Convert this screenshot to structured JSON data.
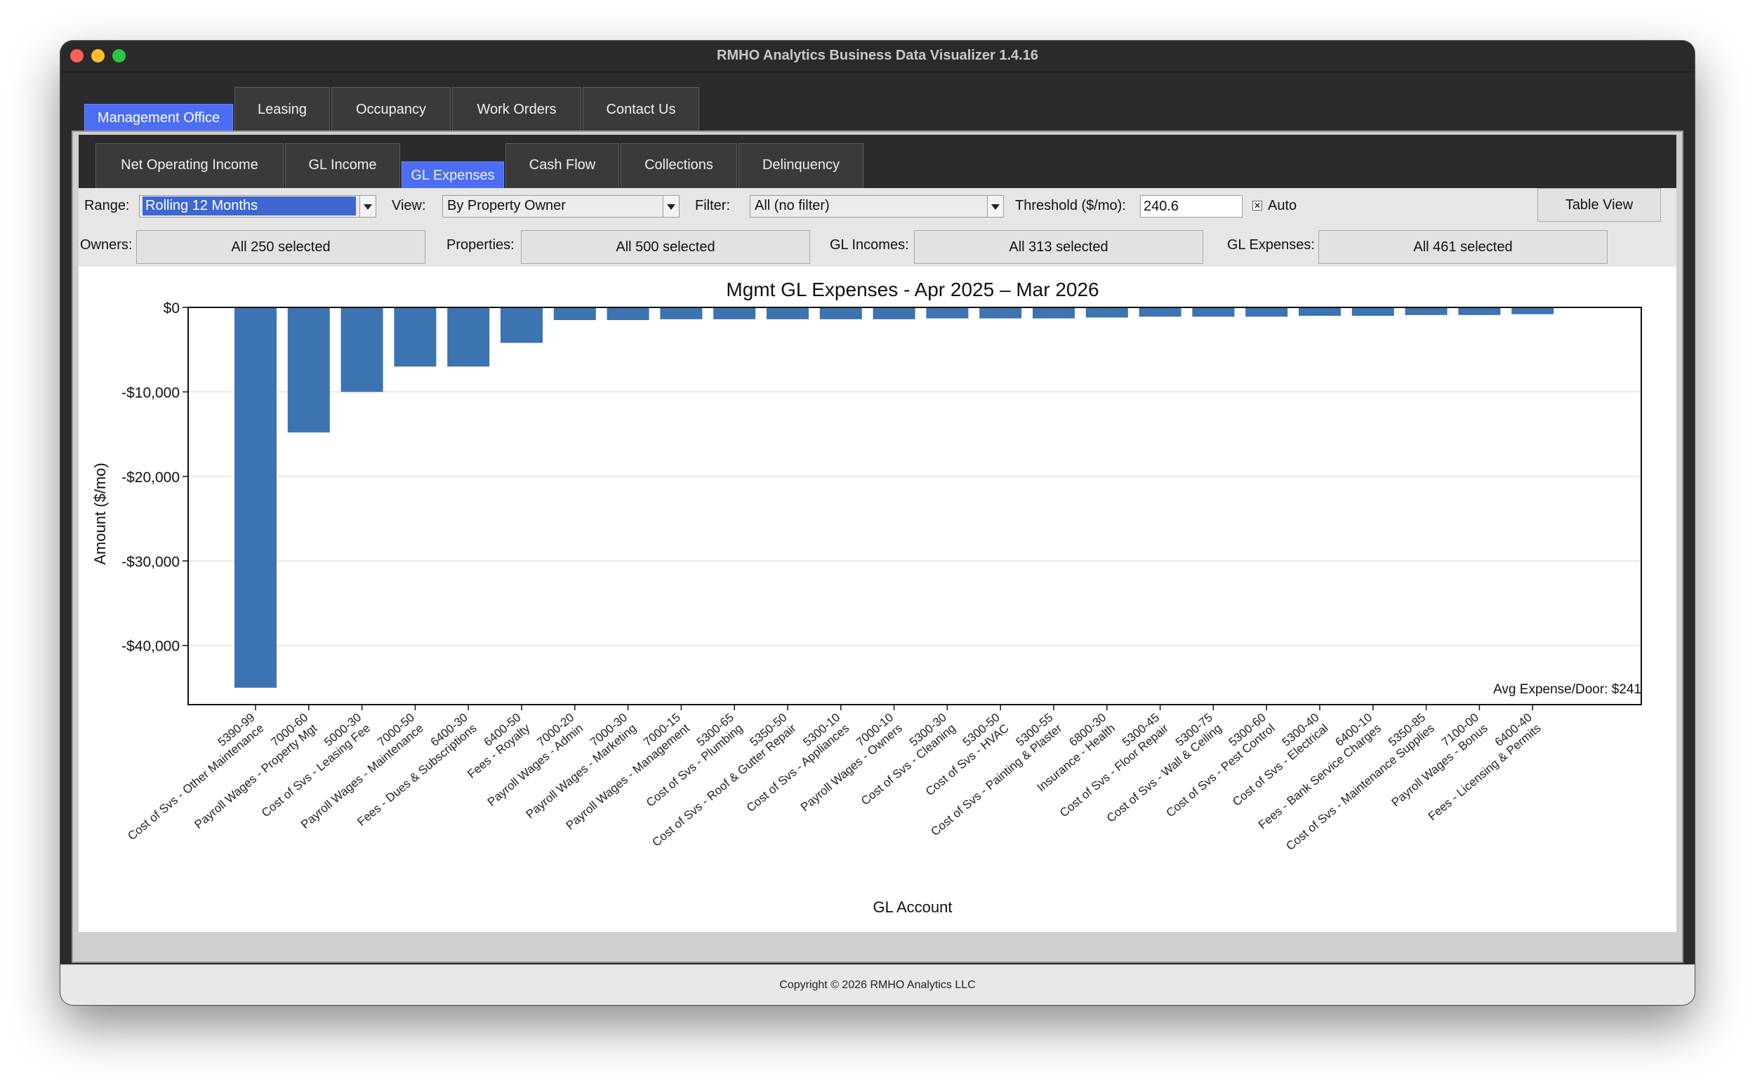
{
  "window": {
    "title": "RMHO Analytics Business Data Visualizer 1.4.16"
  },
  "tabs": [
    "Management Office",
    "Leasing",
    "Occupancy",
    "Work Orders",
    "Contact Us"
  ],
  "subtabs": [
    "Net Operating Income",
    "GL Income",
    "GL Expenses",
    "Cash Flow",
    "Collections",
    "Delinquency"
  ],
  "controls": {
    "range_label": "Range:",
    "range_value": "Rolling 12 Months",
    "view_label": "View:",
    "view_value": "By Property Owner",
    "filter_label": "Filter:",
    "filter_value": "All (no filter)",
    "threshold_label": "Threshold ($/mo):",
    "threshold_value": "240.6",
    "auto_label": "Auto",
    "auto_mark": "✕",
    "table_view_label": "Table View",
    "owners_label": "Owners:",
    "owners_value": "All 250 selected",
    "properties_label": "Properties:",
    "properties_value": "All 500 selected",
    "gl_incomes_label": "GL Incomes:",
    "gl_incomes_value": "All 313 selected",
    "gl_expenses_label": "GL Expenses:",
    "gl_expenses_value": "All 461 selected"
  },
  "chart_data": {
    "type": "bar",
    "title": "Mgmt GL Expenses - Apr 2025 – Mar 2026",
    "xlabel": "GL Account",
    "ylabel": "Amount ($/mo)",
    "ylim": [
      -47000,
      0
    ],
    "yticks": [
      0,
      -10000,
      -20000,
      -30000,
      -40000
    ],
    "ytick_labels": [
      "$0",
      "-$10,000",
      "-$20,000",
      "-$30,000",
      "-$40,000"
    ],
    "grid": true,
    "bar_color": "#3b74b0",
    "annotation": "Avg Expense/Door: $241",
    "categories": [
      "5390-99\nCost of Svs - Other Maintenance",
      "7000-60\nPayroll Wages - Property Mgt",
      "5000-30\nCost of Svs - Leasing Fee",
      "7000-50\nPayroll Wages - Maintenance",
      "6400-30\nFees - Dues & Subscriptions",
      "6400-50\nFees - Royalty",
      "7000-20\nPayroll Wages - Admin",
      "7000-30\nPayroll Wages - Marketing",
      "7000-15\nPayroll Wages - Management",
      "5300-65\nCost of Svs - Plumbing",
      "5350-50\nCost of Svs - Roof & Gutter Repair",
      "5300-10\nCost of Svs - Appliances",
      "7000-10\nPayroll Wages - Owners",
      "5300-30\nCost of Svs - Cleaning",
      "5300-50\nCost of Svs - HVAC",
      "5300-55\nCost of Svs - Painting & Plaster",
      "6800-30\nInsurance - Health",
      "5300-45\nCost of Svs - Floor Repair",
      "5300-75\nCost of Svs - Wall & Ceiling",
      "5300-60\nCost of Svs - Pest Control",
      "5300-40\nCost of Svs - Electrical",
      "6400-10\nFees - Bank Service Charges",
      "5350-85\nCost of Svs - Maintenance Supplies",
      "7100-00\nPayroll Wages - Bonus",
      "6400-40\nFees - Licensing & Permits"
    ],
    "values": [
      -45000,
      -14800,
      -10000,
      -7000,
      -7000,
      -4200,
      -1500,
      -1500,
      -1400,
      -1400,
      -1400,
      -1400,
      -1400,
      -1300,
      -1300,
      -1300,
      -1200,
      -1100,
      -1100,
      -1100,
      -1000,
      -1000,
      -900,
      -900,
      -800
    ]
  },
  "footer": {
    "copyright": "Copyright © 2026 RMHO Analytics LLC"
  }
}
